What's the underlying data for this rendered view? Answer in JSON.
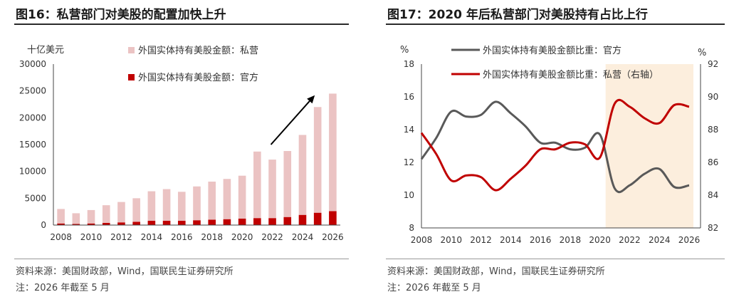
{
  "charts": [
    {
      "title": "图16：私营部门对美股的配置加快上升",
      "source": "资料来源：美国财政部，Wind，国联民生证券研究所",
      "note": "注：2026 年截至 5 月",
      "y_unit": "十亿美元",
      "colors": {
        "private": "#EBC3C3",
        "official": "#C00000",
        "arrow": "#000000"
      }
    },
    {
      "title": "图17：2020 年后私营部门对美股持有占比上行",
      "source": "资料来源：美国财政部，Wind，国联民生证券研究所",
      "note": "注：2026 年截至 5 月",
      "y_unit_left": "%",
      "y_unit_right": "%",
      "colors": {
        "official": "#595959",
        "private": "#C00000",
        "highlight": "#FCEEDD"
      }
    }
  ],
  "chart_data": [
    {
      "type": "bar",
      "stacked": true,
      "years": [
        2008,
        2009,
        2010,
        2011,
        2012,
        2013,
        2014,
        2015,
        2016,
        2017,
        2018,
        2019,
        2020,
        2021,
        2022,
        2023,
        2024,
        2025,
        2026
      ],
      "x_ticks": [
        "2008",
        "2010",
        "2012",
        "2014",
        "2016",
        "2018",
        "2020",
        "2022",
        "2024",
        "2026"
      ],
      "series": [
        {
          "name": "外国实体持有美股金额：官方",
          "values": [
            300,
            200,
            300,
            400,
            500,
            600,
            800,
            800,
            800,
            900,
            1000,
            1100,
            1200,
            1300,
            1300,
            1500,
            1900,
            2300,
            2600
          ]
        },
        {
          "name": "外国实体持有美股金额：私营",
          "values": [
            2700,
            2000,
            2500,
            3300,
            3800,
            4400,
            5500,
            5900,
            5400,
            6300,
            7100,
            7500,
            8000,
            12400,
            10900,
            12300,
            14900,
            19700,
            21900
          ]
        }
      ],
      "ylim": [
        0,
        30000
      ],
      "y_ticks": [
        "0",
        "5000",
        "10000",
        "15000",
        "20000",
        "25000",
        "30000"
      ],
      "legend_position": "top",
      "annotation": "upward arrow from 2022 toward 2025"
    },
    {
      "type": "line",
      "x": [
        2008,
        2009,
        2010,
        2011,
        2012,
        2013,
        2014,
        2015,
        2016,
        2017,
        2018,
        2019,
        2020,
        2021,
        2022,
        2023,
        2024,
        2025,
        2026
      ],
      "x_ticks": [
        "2008",
        "2010",
        "2012",
        "2014",
        "2016",
        "2018",
        "2020",
        "2022",
        "2024",
        "2026"
      ],
      "series": [
        {
          "name": "外国实体持有美股金额比重：官方",
          "axis": "left",
          "values": [
            12.2,
            13.5,
            15.1,
            14.8,
            14.9,
            15.7,
            15.0,
            14.2,
            13.2,
            13.2,
            12.8,
            12.9,
            13.7,
            10.4,
            10.6,
            11.3,
            11.6,
            10.5,
            10.6
          ]
        },
        {
          "name": "外国实体持有美股金额比重：私营（右轴）",
          "axis": "right",
          "values": [
            87.8,
            86.5,
            84.9,
            85.2,
            85.1,
            84.3,
            85.0,
            85.8,
            86.8,
            86.8,
            87.2,
            87.1,
            86.3,
            89.6,
            89.4,
            88.7,
            88.4,
            89.5,
            89.4
          ]
        }
      ],
      "ylim_left": [
        8,
        18
      ],
      "y_ticks_left": [
        "8",
        "10",
        "12",
        "14",
        "16",
        "18"
      ],
      "ylim_right": [
        82,
        92
      ],
      "y_ticks_right": [
        "82",
        "84",
        "86",
        "88",
        "90",
        "92"
      ],
      "highlight_range": [
        2020,
        2026
      ],
      "legend_position": "top"
    }
  ]
}
